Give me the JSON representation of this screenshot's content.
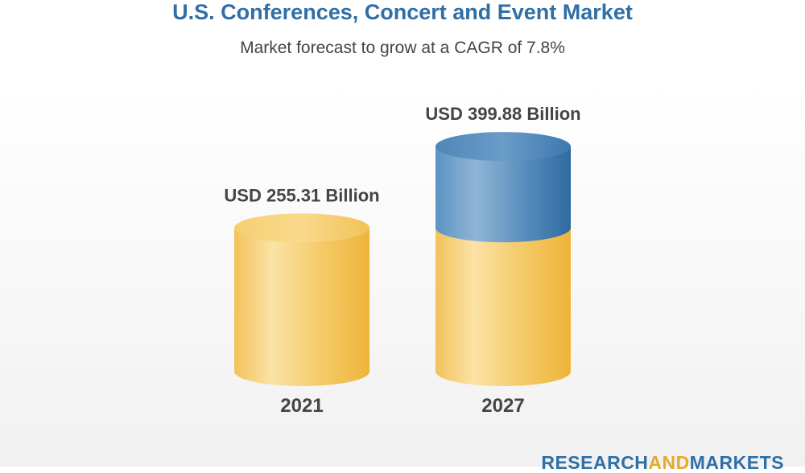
{
  "title": "U.S. Conferences, Concert and Event Market",
  "subtitle": "Market forecast to grow at a CAGR of 7.8%",
  "brand": {
    "part1": "RESEARCH",
    "part2": "AND",
    "part3": "MARKETS"
  },
  "colors": {
    "title": "#2f6fa6",
    "base_series": "#f1bd45",
    "growth_series": "#3f7fb3",
    "label_text": "#444444"
  },
  "chart_data": {
    "type": "bar",
    "style": "3d-cylinder-stacked",
    "title": "U.S. Conferences, Concert and Event Market",
    "subtitle": "Market forecast to grow at a CAGR of 7.8%",
    "categories": [
      "2021",
      "2027"
    ],
    "values": [
      255.31,
      399.88
    ],
    "value_labels": [
      "USD 255.31 Billion",
      "USD 399.88 Billion"
    ],
    "unit": "USD Billion",
    "cagr_percent": 7.8,
    "series": [
      {
        "values": [
          255.31,
          255.31
        ]
      },
      {
        "values": [
          0,
          144.57
        ]
      }
    ],
    "xlabel": "",
    "ylabel": "",
    "axes_visible": false,
    "grid": false,
    "legend": "none"
  }
}
